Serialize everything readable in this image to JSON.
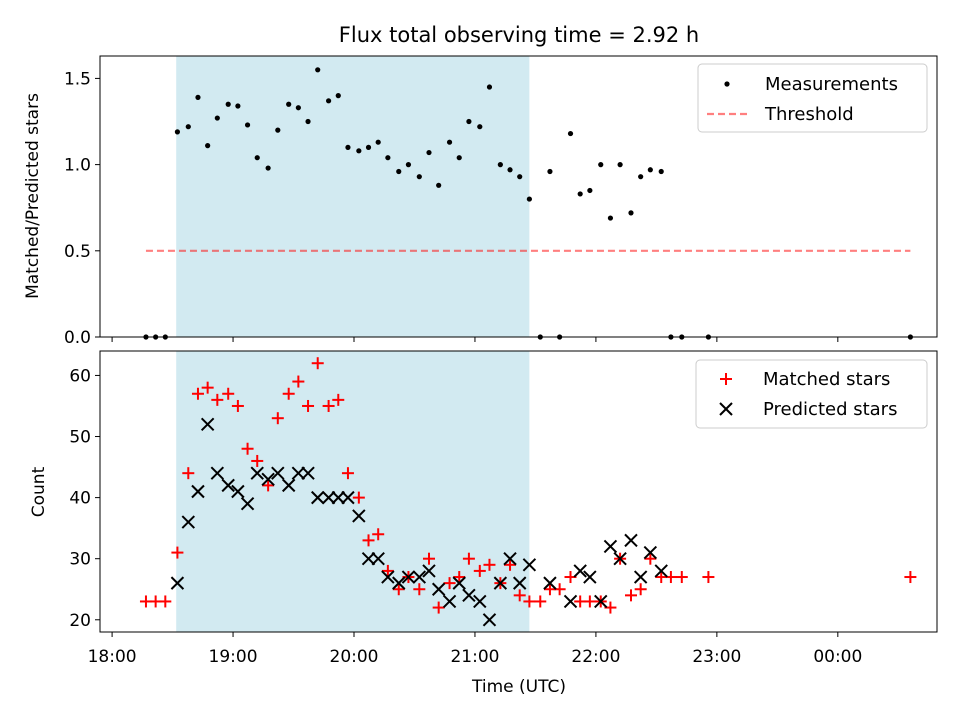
{
  "title": "Flux total observing time = 2.92 h",
  "colors": {
    "shade": "#add8e6",
    "measurement": "#000000",
    "threshold": "#ff0000",
    "matched": "#ff0000",
    "predicted": "#000000"
  },
  "chart_data": [
    {
      "type": "scatter",
      "panel": "top",
      "ylabel": "Matched/Predicted stars",
      "ylim": [
        0,
        1.63
      ],
      "xlim_hours": [
        17.9,
        24.82
      ],
      "yticks": [
        0.0,
        0.5,
        1.0,
        1.5
      ],
      "ytick_labels": [
        "0.0",
        "0.5",
        "1.0",
        "1.5"
      ],
      "shaded_span_hours": [
        18.53,
        21.45
      ],
      "legend": {
        "placement": "top-right",
        "entries": [
          "Measurements",
          "Threshold"
        ]
      },
      "threshold": {
        "name": "Threshold",
        "value": 0.5,
        "x_range_hours": [
          18.28,
          24.6
        ],
        "style": "dashed"
      },
      "series": [
        {
          "name": "Measurements",
          "marker": "dot",
          "points": [
            [
              18.28,
              0
            ],
            [
              18.36,
              0
            ],
            [
              18.44,
              0
            ],
            [
              18.54,
              1.19
            ],
            [
              18.63,
              1.22
            ],
            [
              18.71,
              1.39
            ],
            [
              18.79,
              1.11
            ],
            [
              18.87,
              1.27
            ],
            [
              18.96,
              1.35
            ],
            [
              19.04,
              1.34
            ],
            [
              19.12,
              1.23
            ],
            [
              19.2,
              1.04
            ],
            [
              19.29,
              0.98
            ],
            [
              19.37,
              1.2
            ],
            [
              19.46,
              1.35
            ],
            [
              19.54,
              1.33
            ],
            [
              19.62,
              1.25
            ],
            [
              19.7,
              1.55
            ],
            [
              19.79,
              1.37
            ],
            [
              19.87,
              1.4
            ],
            [
              19.95,
              1.1
            ],
            [
              20.04,
              1.08
            ],
            [
              20.12,
              1.1
            ],
            [
              20.2,
              1.13
            ],
            [
              20.28,
              1.04
            ],
            [
              20.37,
              0.96
            ],
            [
              20.45,
              1.0
            ],
            [
              20.54,
              0.93
            ],
            [
              20.62,
              1.07
            ],
            [
              20.7,
              0.88
            ],
            [
              20.79,
              1.13
            ],
            [
              20.87,
              1.04
            ],
            [
              20.95,
              1.25
            ],
            [
              21.04,
              1.22
            ],
            [
              21.12,
              1.45
            ],
            [
              21.21,
              1.0
            ],
            [
              21.29,
              0.97
            ],
            [
              21.37,
              0.93
            ],
            [
              21.45,
              0.8
            ],
            [
              21.54,
              0
            ],
            [
              21.62,
              0.96
            ],
            [
              21.7,
              0
            ],
            [
              21.79,
              1.18
            ],
            [
              21.87,
              0.83
            ],
            [
              21.95,
              0.85
            ],
            [
              22.04,
              1.0
            ],
            [
              22.12,
              0.69
            ],
            [
              22.2,
              1.0
            ],
            [
              22.29,
              0.72
            ],
            [
              22.37,
              0.93
            ],
            [
              22.45,
              0.97
            ],
            [
              22.54,
              0.96
            ],
            [
              22.62,
              0
            ],
            [
              22.71,
              0
            ],
            [
              22.93,
              0
            ],
            [
              24.6,
              0
            ]
          ]
        }
      ]
    },
    {
      "type": "scatter",
      "panel": "bottom",
      "xlabel": "Time (UTC)",
      "ylabel": "Count",
      "ylim": [
        18,
        64
      ],
      "xlim_hours": [
        17.9,
        24.82
      ],
      "yticks": [
        20,
        30,
        40,
        50,
        60
      ],
      "ytick_labels": [
        "20",
        "30",
        "40",
        "50",
        "60"
      ],
      "xticks_hours": [
        18,
        19,
        20,
        21,
        22,
        23,
        24
      ],
      "xtick_labels": [
        "18:00",
        "19:00",
        "20:00",
        "21:00",
        "22:00",
        "23:00",
        "00:00"
      ],
      "shaded_span_hours": [
        18.53,
        21.45
      ],
      "legend": {
        "placement": "top-right",
        "entries": [
          "Matched stars",
          "Predicted stars"
        ]
      },
      "series": [
        {
          "name": "Matched stars",
          "marker": "plus",
          "points": [
            [
              18.28,
              23
            ],
            [
              18.36,
              23
            ],
            [
              18.44,
              23
            ],
            [
              18.54,
              31
            ],
            [
              18.63,
              44
            ],
            [
              18.71,
              57
            ],
            [
              18.79,
              58
            ],
            [
              18.87,
              56
            ],
            [
              18.96,
              57
            ],
            [
              19.04,
              55
            ],
            [
              19.12,
              48
            ],
            [
              19.2,
              46
            ],
            [
              19.29,
              42
            ],
            [
              19.37,
              53
            ],
            [
              19.46,
              57
            ],
            [
              19.54,
              59
            ],
            [
              19.62,
              55
            ],
            [
              19.7,
              62
            ],
            [
              19.79,
              55
            ],
            [
              19.87,
              56
            ],
            [
              19.95,
              44
            ],
            [
              20.04,
              40
            ],
            [
              20.12,
              33
            ],
            [
              20.2,
              34
            ],
            [
              20.28,
              28
            ],
            [
              20.37,
              25
            ],
            [
              20.45,
              27
            ],
            [
              20.54,
              25
            ],
            [
              20.62,
              30
            ],
            [
              20.7,
              22
            ],
            [
              20.79,
              26
            ],
            [
              20.87,
              27
            ],
            [
              20.95,
              30
            ],
            [
              21.04,
              28
            ],
            [
              21.12,
              29
            ],
            [
              21.21,
              26
            ],
            [
              21.29,
              29
            ],
            [
              21.37,
              24
            ],
            [
              21.45,
              23
            ],
            [
              21.54,
              23
            ],
            [
              21.62,
              25
            ],
            [
              21.7,
              25
            ],
            [
              21.79,
              27
            ],
            [
              21.87,
              23
            ],
            [
              21.95,
              23
            ],
            [
              22.04,
              23
            ],
            [
              22.12,
              22
            ],
            [
              22.2,
              30
            ],
            [
              22.29,
              24
            ],
            [
              22.37,
              25
            ],
            [
              22.45,
              30
            ],
            [
              22.54,
              27
            ],
            [
              22.62,
              27
            ],
            [
              22.71,
              27
            ],
            [
              22.93,
              27
            ],
            [
              24.6,
              27
            ]
          ]
        },
        {
          "name": "Predicted stars",
          "marker": "x",
          "points": [
            [
              18.54,
              26
            ],
            [
              18.63,
              36
            ],
            [
              18.71,
              41
            ],
            [
              18.79,
              52
            ],
            [
              18.87,
              44
            ],
            [
              18.96,
              42
            ],
            [
              19.04,
              41
            ],
            [
              19.12,
              39
            ],
            [
              19.2,
              44
            ],
            [
              19.29,
              43
            ],
            [
              19.37,
              44
            ],
            [
              19.46,
              42
            ],
            [
              19.54,
              44
            ],
            [
              19.62,
              44
            ],
            [
              19.7,
              40
            ],
            [
              19.79,
              40
            ],
            [
              19.87,
              40
            ],
            [
              19.95,
              40
            ],
            [
              20.04,
              37
            ],
            [
              20.12,
              30
            ],
            [
              20.2,
              30
            ],
            [
              20.28,
              27
            ],
            [
              20.37,
              26
            ],
            [
              20.45,
              27
            ],
            [
              20.54,
              27
            ],
            [
              20.62,
              28
            ],
            [
              20.7,
              25
            ],
            [
              20.79,
              23
            ],
            [
              20.87,
              26
            ],
            [
              20.95,
              24
            ],
            [
              21.04,
              23
            ],
            [
              21.12,
              20
            ],
            [
              21.21,
              26
            ],
            [
              21.29,
              30
            ],
            [
              21.37,
              26
            ],
            [
              21.45,
              29
            ],
            [
              21.62,
              26
            ],
            [
              21.79,
              23
            ],
            [
              21.87,
              28
            ],
            [
              21.95,
              27
            ],
            [
              22.04,
              23
            ],
            [
              22.12,
              32
            ],
            [
              22.2,
              30
            ],
            [
              22.29,
              33
            ],
            [
              22.37,
              27
            ],
            [
              22.45,
              31
            ],
            [
              22.54,
              28
            ]
          ]
        }
      ]
    }
  ]
}
